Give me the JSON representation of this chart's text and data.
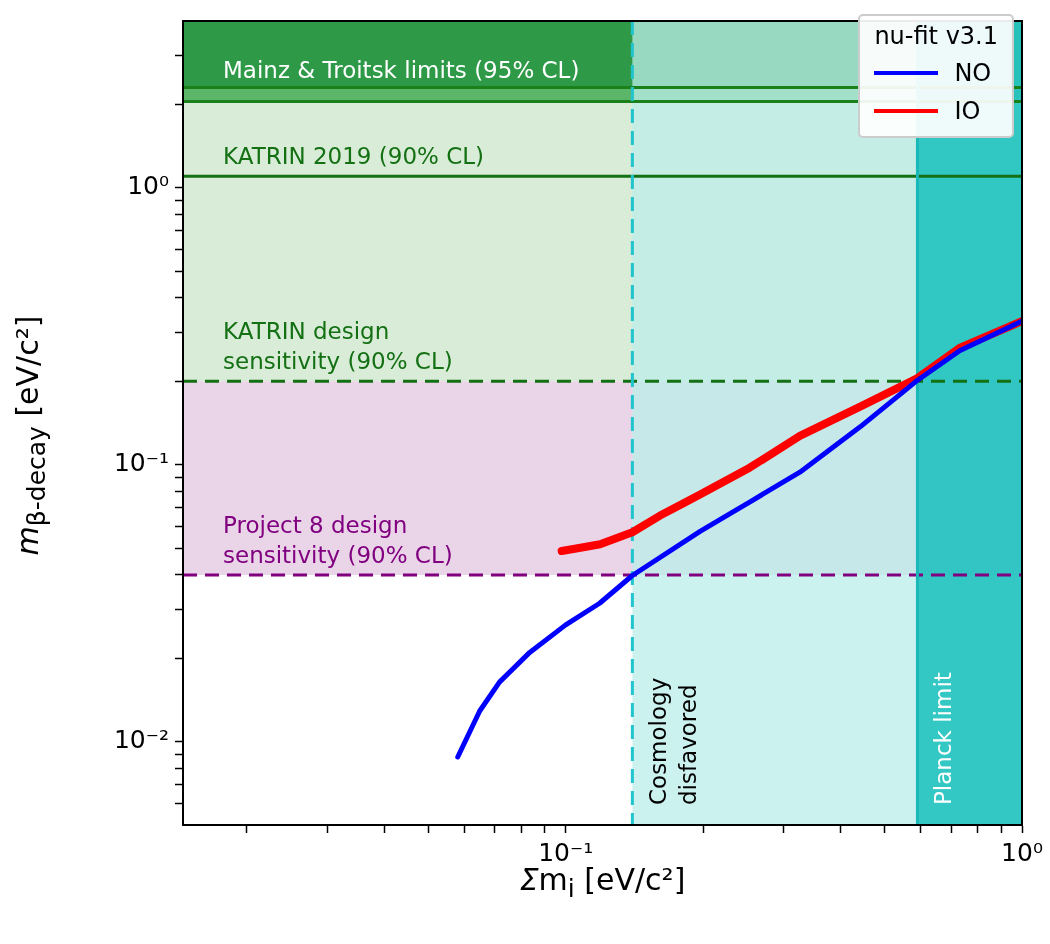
{
  "chart_data": {
    "type": "line",
    "xlabel": "Σm$_{i}$ [eV/c²]",
    "ylabel": "m$_{β-decay}$ [eV/c²]",
    "legend_title": "nu-fit v3.1",
    "legend": "top right",
    "log": "xy",
    "xlim": [
      0.0145,
      1
    ],
    "ylim": [
      0.005,
      4
    ],
    "xticks": [
      {
        "value": 0.02,
        "label": null
      },
      {
        "value": 0.03,
        "label": null
      },
      {
        "value": 0.04,
        "label": null
      },
      {
        "value": 0.05,
        "label": null
      },
      {
        "value": 0.06,
        "label": null
      },
      {
        "value": 0.07,
        "label": null
      },
      {
        "value": 0.08,
        "label": null
      },
      {
        "value": 0.09,
        "label": null
      },
      {
        "value": 0.1,
        "label": "10⁻¹"
      },
      {
        "value": 0.2,
        "label": null
      },
      {
        "value": 0.3,
        "label": null
      },
      {
        "value": 0.4,
        "label": null
      },
      {
        "value": 0.5,
        "label": null
      },
      {
        "value": 0.6,
        "label": null
      },
      {
        "value": 0.7,
        "label": null
      },
      {
        "value": 0.8,
        "label": null
      },
      {
        "value": 0.9,
        "label": null
      },
      {
        "value": 1,
        "label": "10⁰"
      }
    ],
    "yticks": [
      {
        "value": 0.006,
        "label": null
      },
      {
        "value": 0.007,
        "label": null
      },
      {
        "value": 0.008,
        "label": null
      },
      {
        "value": 0.009,
        "label": null
      },
      {
        "value": 0.01,
        "label": "10⁻²"
      },
      {
        "value": 0.02,
        "label": null
      },
      {
        "value": 0.03,
        "label": null
      },
      {
        "value": 0.04,
        "label": null
      },
      {
        "value": 0.05,
        "label": null
      },
      {
        "value": 0.06,
        "label": null
      },
      {
        "value": 0.07,
        "label": null
      },
      {
        "value": 0.08,
        "label": null
      },
      {
        "value": 0.09,
        "label": null
      },
      {
        "value": 0.1,
        "label": "10⁻¹"
      },
      {
        "value": 0.2,
        "label": null
      },
      {
        "value": 0.3,
        "label": null
      },
      {
        "value": 0.4,
        "label": null
      },
      {
        "value": 0.5,
        "label": null
      },
      {
        "value": 0.6,
        "label": null
      },
      {
        "value": 0.7,
        "label": null
      },
      {
        "value": 0.8,
        "label": null
      },
      {
        "value": 0.9,
        "label": null
      },
      {
        "value": 1,
        "label": "10⁰"
      },
      {
        "value": 2,
        "label": null
      },
      {
        "value": 3,
        "label": null
      }
    ],
    "series": [
      {
        "name": "NO",
        "color": "#0000ff",
        "x": [
          0.058,
          0.0648,
          0.0716,
          0.0834,
          0.1,
          0.1187,
          0.14,
          0.197,
          0.253,
          0.326,
          0.442,
          0.586,
          0.73,
          1
        ],
        "values": [
          0.0088,
          0.0129,
          0.0164,
          0.021,
          0.0264,
          0.0316,
          0.0398,
          0.0574,
          0.0733,
          0.094,
          0.137,
          0.2,
          0.258,
          0.33
        ]
      },
      {
        "name": "IO",
        "color": "#ff0000",
        "x": [
          0.098,
          0.107,
          0.119,
          0.14,
          0.161,
          0.197,
          0.253,
          0.326,
          0.442,
          0.586,
          0.73,
          1
        ],
        "values": [
          0.0488,
          0.05,
          0.0516,
          0.057,
          0.0655,
          0.078,
          0.0975,
          0.127,
          0.162,
          0.204,
          0.264,
          0.33
        ]
      }
    ],
    "bands": [
      {
        "axis": "y",
        "from": 0.2,
        "to": 2.05,
        "color": "#d9ecd8"
      },
      {
        "axis": "y",
        "from": 0.04,
        "to": 0.2,
        "color": "#ead5e8"
      },
      {
        "axis": "y",
        "from": 2.05,
        "to": 4,
        "color": "#5cb66a"
      },
      {
        "axis": "y",
        "from": 2.3,
        "to": 4,
        "color": "#2e9a48",
        "label": "Mainz & Troitsk limits (95% CL)"
      },
      {
        "axis": "x",
        "from": 0.14,
        "to": 1,
        "color": "#bbeeea",
        "label": "Cosmology\ndisfavored"
      },
      {
        "axis": "x",
        "from": 0.59,
        "to": 1,
        "color": "#00bab6",
        "label": "Planck limit"
      }
    ],
    "ref_lines": [
      {
        "axis": "y",
        "value": 2.3,
        "color": "#1a801a",
        "line_style": "solid"
      },
      {
        "axis": "y",
        "value": 2.05,
        "color": "#1a801a",
        "line_style": "solid"
      },
      {
        "axis": "y",
        "value": 1.1,
        "color": "#137013",
        "line_style": "solid",
        "label": "KATRIN 2019 (90% CL)"
      },
      {
        "axis": "y",
        "value": 0.2,
        "color": "#137013",
        "line_style": "dashed",
        "label": "KATRIN design\nsensitivity (90% CL)"
      },
      {
        "axis": "y",
        "value": 0.04,
        "color": "#800080",
        "line_style": "dashed",
        "label": "Project 8 design\nsensitivity (90% CL)"
      },
      {
        "axis": "x",
        "value": 0.14,
        "color": "#20c4cc",
        "line_style": "dashed"
      },
      {
        "axis": "x",
        "value": 0.59,
        "color": "#1ab8b8",
        "line_style": "solid"
      }
    ]
  }
}
